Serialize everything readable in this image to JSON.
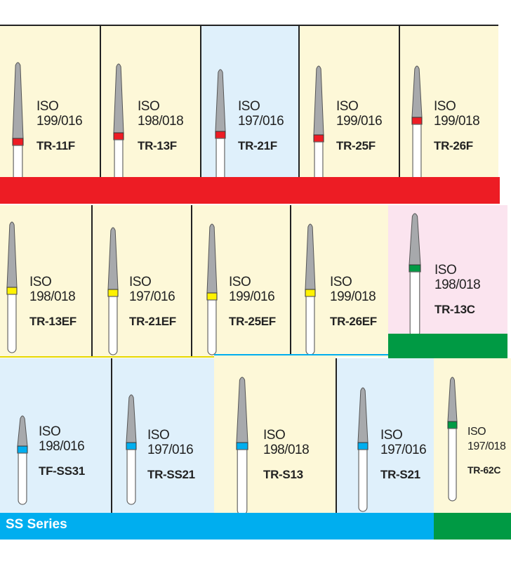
{
  "colors": {
    "yellow_bg": "#fdf8d8",
    "blue_bg": "#dff0fb",
    "pink_bg": "#fbe4ef",
    "red": "#ed1c24",
    "yellow": "#fff200",
    "blue": "#00aeef",
    "green": "#009a44",
    "head": "#a7a9ac"
  },
  "rows": [
    {
      "items": [
        {
          "iso": "ISO",
          "size": "199/016",
          "code": "TR-11F",
          "ring": "red",
          "bg": "yellow"
        },
        {
          "iso": "ISO",
          "size": "198/018",
          "code": "TR-13F",
          "ring": "red",
          "bg": "yellow"
        },
        {
          "iso": "ISO",
          "size": "197/016",
          "code": "TR-21F",
          "ring": "red",
          "bg": "blue"
        },
        {
          "iso": "ISO",
          "size": "199/016",
          "code": "TR-25F",
          "ring": "red",
          "bg": "yellow"
        },
        {
          "iso": "ISO",
          "size": "199/018",
          "code": "TR-26F",
          "ring": "red",
          "bg": "yellow"
        }
      ]
    },
    {
      "items": [
        {
          "iso": "ISO",
          "size": "198/018",
          "code": "TR-13EF",
          "ring": "yellow",
          "bg": "yellow"
        },
        {
          "iso": "ISO",
          "size": "197/016",
          "code": "TR-21EF",
          "ring": "yellow",
          "bg": "yellow"
        },
        {
          "iso": "ISO",
          "size": "199/016",
          "code": "TR-25EF",
          "ring": "yellow",
          "bg": "yellow"
        },
        {
          "iso": "ISO",
          "size": "199/018",
          "code": "TR-26EF",
          "ring": "yellow",
          "bg": "yellow"
        },
        {
          "iso": "ISO",
          "size": "198/018",
          "code": "TR-13C",
          "ring": "green",
          "bg": "pink"
        }
      ]
    },
    {
      "items": [
        {
          "iso": "ISO",
          "size": "198/016",
          "code": "TF-SS31",
          "ring": "blue",
          "bg": "blue"
        },
        {
          "iso": "ISO",
          "size": "197/016",
          "code": "TR-SS21",
          "ring": "blue",
          "bg": "blue"
        },
        {
          "iso": "ISO",
          "size": "198/018",
          "code": "TR-S13",
          "ring": "blue",
          "bg": "yellow"
        },
        {
          "iso": "ISO",
          "size": "197/016",
          "code": "TR-S21",
          "ring": "blue",
          "bg": "blue"
        },
        {
          "iso": "ISO",
          "size": "197/018",
          "code": "TR-62C",
          "ring": "green",
          "bg": "yellow"
        }
      ]
    }
  ],
  "series_label": "SS Series"
}
